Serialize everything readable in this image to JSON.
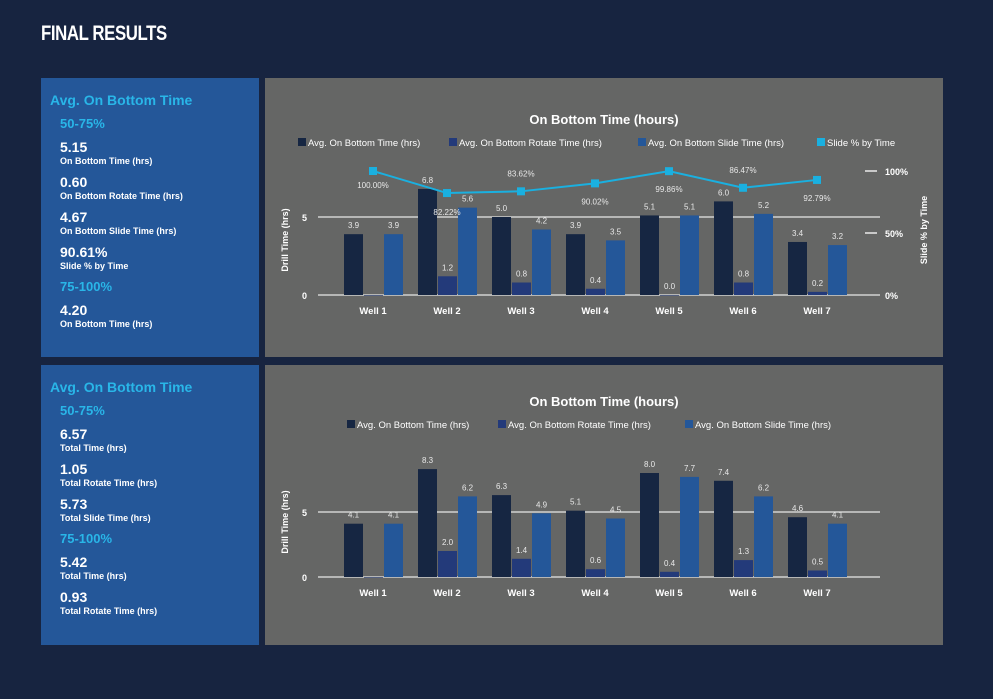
{
  "page_title": "FINAL RESULTS",
  "panels": [
    {
      "heading": "Avg. On Bottom Time",
      "groups": [
        {
          "range": "50-75%",
          "items": [
            {
              "value": "5.15",
              "label": "On Bottom Time (hrs)"
            },
            {
              "value": "0.60",
              "label": "On Bottom Rotate Time (hrs)"
            },
            {
              "value": "4.67",
              "label": "On Bottom Slide Time (hrs)"
            },
            {
              "value": "90.61%",
              "label": "Slide % by Time"
            }
          ]
        },
        {
          "range": "75-100%",
          "items": [
            {
              "value": "4.20",
              "label": "On Bottom Time (hrs)"
            }
          ]
        }
      ]
    },
    {
      "heading": "Avg. On Bottom Time",
      "groups": [
        {
          "range": "50-75%",
          "items": [
            {
              "value": "6.57",
              "label": "Total Time (hrs)"
            },
            {
              "value": "1.05",
              "label": "Total Rotate Time (hrs)"
            },
            {
              "value": "5.73",
              "label": "Total Slide Time (hrs)"
            }
          ]
        },
        {
          "range": "75-100%",
          "items": [
            {
              "value": "5.42",
              "label": "Total Time (hrs)"
            },
            {
              "value": "0.93",
              "label": "Total Rotate Time (hrs)"
            }
          ]
        }
      ]
    }
  ],
  "colors": {
    "total": "#162642",
    "rotate": "#233a7a",
    "slide": "#245799",
    "pct": "#1ab0e0"
  },
  "chart_data": [
    {
      "type": "bar",
      "title": "On Bottom Time (hours)",
      "ylabel": "Drill Time (hrs)",
      "y2label": "Slide % by Time",
      "ylim": [
        0,
        8
      ],
      "y2lim": [
        0,
        100
      ],
      "yticks": [
        "0",
        "5"
      ],
      "y2ticks": [
        "0%",
        "50%",
        "100%"
      ],
      "categories": [
        "Well 1",
        "Well 2",
        "Well 3",
        "Well 4",
        "Well 5",
        "Well 6",
        "Well 7"
      ],
      "series": [
        {
          "name": "Avg. On Bottom Time (hrs)",
          "values": [
            3.9,
            6.8,
            5.0,
            3.9,
            5.1,
            6.0,
            3.4
          ],
          "labels": [
            "3.9",
            "6.8",
            "5.0",
            "3.9",
            "5.1",
            "6.0",
            "3.4"
          ]
        },
        {
          "name": "Avg. On Bottom Rotate Time (hrs)",
          "values": [
            0,
            1.2,
            0.8,
            0.4,
            0.0,
            0.8,
            0.2
          ],
          "labels": [
            "",
            "1.2",
            "0.8",
            "0.4",
            "0.0",
            "0.8",
            "0.2"
          ]
        },
        {
          "name": "Avg. On Bottom Slide Time (hrs)",
          "values": [
            3.9,
            5.6,
            4.2,
            3.5,
            5.1,
            5.2,
            3.2
          ],
          "labels": [
            "3.9",
            "5.6",
            "4.2",
            "3.5",
            "5.1",
            "5.2",
            "3.2"
          ]
        }
      ],
      "line": {
        "name": "Slide % by Time",
        "values": [
          100.0,
          82.22,
          83.62,
          90.02,
          99.86,
          86.47,
          92.79
        ],
        "labels": [
          "100.00%",
          "82.22%",
          "83.62%",
          "90.02%",
          "99.86%",
          "86.47%",
          "92.79%"
        ]
      }
    },
    {
      "type": "bar",
      "title": "On Bottom Time (hours)",
      "ylabel": "Drill Time (hrs)",
      "ylim": [
        0,
        9
      ],
      "yticks": [
        "0",
        "5"
      ],
      "categories": [
        "Well 1",
        "Well 2",
        "Well 3",
        "Well 4",
        "Well 5",
        "Well 6",
        "Well 7"
      ],
      "series": [
        {
          "name": "Avg. On Bottom Time (hrs)",
          "values": [
            4.1,
            8.3,
            6.3,
            5.1,
            8.0,
            7.4,
            4.6
          ],
          "labels": [
            "4.1",
            "8.3",
            "6.3",
            "5.1",
            "8.0",
            "7.4",
            "4.6"
          ]
        },
        {
          "name": "Avg. On Bottom Rotate Time (hrs)",
          "values": [
            0,
            2.0,
            1.4,
            0.6,
            0.4,
            1.3,
            0.5
          ],
          "labels": [
            "",
            "2.0",
            "1.4",
            "0.6",
            "0.4",
            "1.3",
            "0.5"
          ]
        },
        {
          "name": "Avg. On Bottom Slide Time (hrs)",
          "values": [
            4.1,
            6.2,
            4.9,
            4.5,
            7.7,
            6.2,
            4.1
          ],
          "labels": [
            "4.1",
            "6.2",
            "4.9",
            "4.5",
            "7.7",
            "6.2",
            "4.1"
          ]
        }
      ]
    }
  ]
}
